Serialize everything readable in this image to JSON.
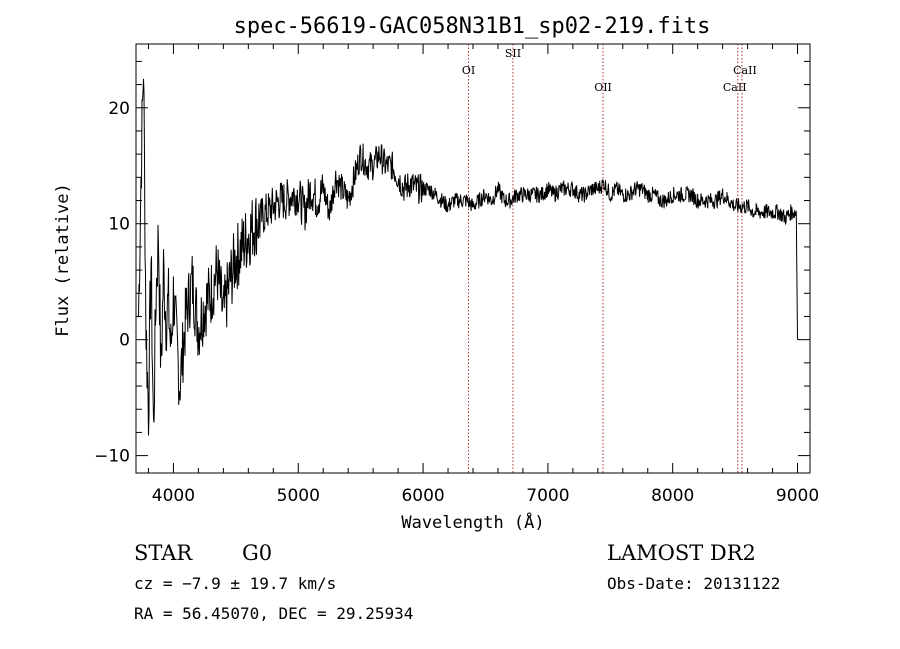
{
  "chart_data": {
    "type": "line",
    "title": "spec-56619-GAC058N31B1_sp02-219.fits",
    "xlabel": "Wavelength (Å)",
    "ylabel": "Flux (relative)",
    "xlim": [
      3700,
      9100
    ],
    "ylim": [
      -11.5,
      25.5
    ],
    "xticks": [
      4000,
      5000,
      6000,
      7000,
      8000,
      9000
    ],
    "xtick_labels": [
      "4000",
      "5000",
      "6000",
      "7000",
      "8000",
      "9000"
    ],
    "yticks": [
      -10,
      0,
      10,
      20
    ],
    "ytick_labels": [
      "−10",
      "0",
      "10",
      "20"
    ],
    "grid": false,
    "series": [
      {
        "x": [
          3720,
          3740,
          3760,
          3780,
          3800,
          3820,
          3840,
          3860,
          3880,
          3900,
          3920,
          3940,
          3960,
          3980,
          4000,
          4050,
          4100,
          4150,
          4200,
          4250,
          4300,
          4350,
          4400,
          4450,
          4500,
          4550,
          4600,
          4650,
          4700,
          4750,
          4800,
          4850,
          4900,
          4950,
          5000,
          5050,
          5100,
          5150,
          5200,
          5250,
          5300,
          5350,
          5400,
          5450,
          5500,
          5550,
          5600,
          5650,
          5700,
          5750,
          5800,
          5850,
          5900,
          5950,
          6000,
          6050,
          6100,
          6150,
          6200,
          6250,
          6300,
          6350,
          6400,
          6450,
          6500,
          6550,
          6600,
          6650,
          6700,
          6750,
          6800,
          6850,
          6900,
          6950,
          7000,
          7050,
          7100,
          7150,
          7200,
          7250,
          7300,
          7350,
          7400,
          7450,
          7500,
          7550,
          7600,
          7650,
          7700,
          7750,
          7800,
          7850,
          7900,
          7950,
          8000,
          8050,
          8100,
          8150,
          8200,
          8250,
          8300,
          8350,
          8400,
          8450,
          8500,
          8550,
          8600,
          8650,
          8700,
          8750,
          8800,
          8850,
          8900,
          8950,
          8990,
          9000
        ],
        "y": [
          2,
          14,
          24,
          1,
          -6,
          7,
          -8,
          4,
          9,
          -3,
          6,
          2,
          3,
          -1,
          4,
          -4,
          2,
          5,
          1,
          3,
          4,
          6,
          2,
          5,
          7,
          8,
          9,
          10,
          10.5,
          11,
          11.5,
          12,
          12,
          12.5,
          12.5,
          11,
          13,
          12,
          13,
          11,
          14,
          13,
          12,
          14,
          16,
          15,
          15,
          16,
          15,
          15,
          14,
          13,
          13.5,
          13,
          13,
          13,
          12.5,
          12,
          11.5,
          12,
          12,
          12,
          11.5,
          12,
          12.5,
          12,
          13,
          12,
          12,
          12.5,
          12.5,
          12.5,
          12.5,
          12.5,
          13,
          12.5,
          13,
          13,
          13,
          12.5,
          12.5,
          13,
          13,
          13.5,
          12.5,
          13,
          12.5,
          12.5,
          13,
          13,
          12.5,
          12.5,
          12,
          12,
          12.5,
          12.5,
          12.5,
          12.5,
          12,
          12,
          12,
          12,
          12.5,
          12,
          11.5,
          11.5,
          11.5,
          11,
          11,
          11,
          11,
          11,
          10.5,
          11,
          11,
          0
        ]
      }
    ],
    "lines": [
      {
        "label": "OI",
        "x": 6364
      },
      {
        "label": "SII",
        "x": 6720
      },
      {
        "label": "OII",
        "x": 7442
      },
      {
        "label": "CaII",
        "x": 8521
      },
      {
        "label": "CaII",
        "x": 8555
      }
    ],
    "line_color": "#b03030"
  },
  "info": {
    "class": "STAR",
    "subclass": "G0",
    "survey": "LAMOST DR2",
    "cz": "cz = −7.9 ± 19.7 km/s",
    "obsdate": "Obs-Date: 20131122",
    "coords": "RA =  56.45070, DEC =  29.25934"
  }
}
